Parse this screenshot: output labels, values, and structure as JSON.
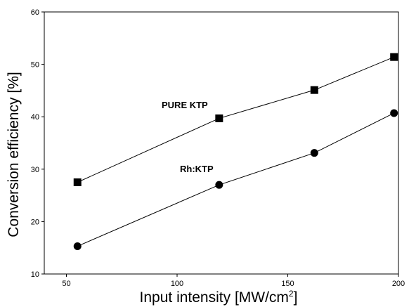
{
  "chart_data": {
    "type": "line",
    "xlabel": "Input intensity [MW/cm",
    "xlabel_superscript": "2",
    "xlabel_suffix": "]",
    "ylabel": "Conversion efficiency  [%]",
    "xlim": [
      40,
      200
    ],
    "ylim": [
      10,
      60
    ],
    "xticks": [
      50,
      100,
      150,
      200
    ],
    "yticks": [
      10,
      20,
      30,
      40,
      50,
      60
    ],
    "grid": false,
    "series": [
      {
        "name": "PURE KTP",
        "marker": "square",
        "x": [
          55,
          119,
          162,
          198
        ],
        "y": [
          27.5,
          39.7,
          45.1,
          51.4
        ]
      },
      {
        "name": "Rh:KTP",
        "marker": "circle",
        "x": [
          55,
          119,
          162,
          198
        ],
        "y": [
          15.3,
          27.0,
          33.1,
          40.7
        ]
      }
    ]
  }
}
